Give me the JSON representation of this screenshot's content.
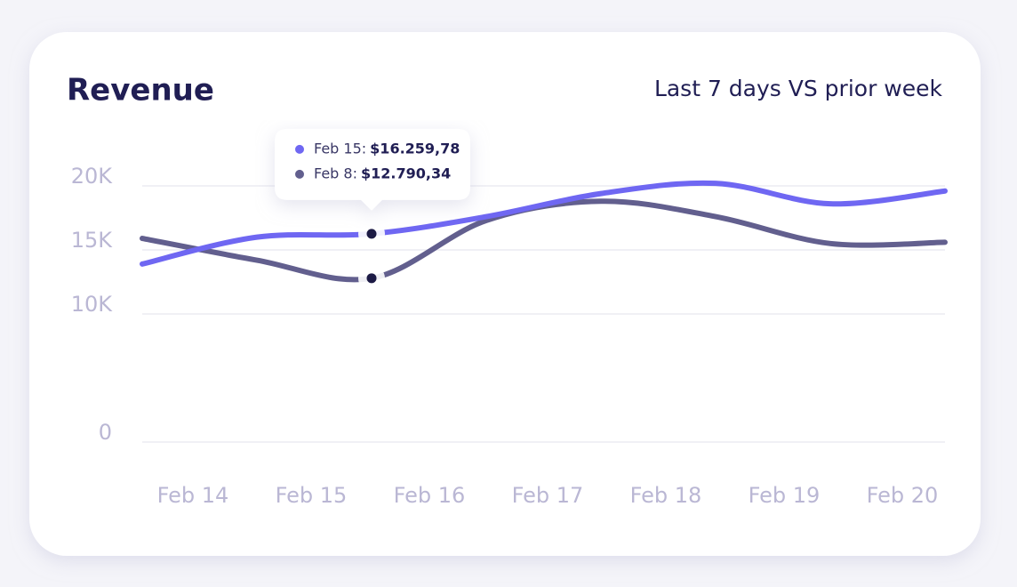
{
  "chart_data": {
    "type": "line",
    "title": "Revenue",
    "subtitle": "Last 7 days VS prior week",
    "x_labels": [
      "Feb 14",
      "Feb 15",
      "Feb 16",
      "Feb 17",
      "Feb 18",
      "Feb 19",
      "Feb 20"
    ],
    "series": [
      {
        "name": "Feb 15:",
        "color": "#6f67f2",
        "values": [
          13900,
          16000,
          16259.78,
          17600,
          19400,
          20200,
          18600,
          19600
        ],
        "value_labels": [
          null,
          null,
          "$16.259,78",
          null,
          null,
          null,
          null,
          null
        ]
      },
      {
        "name": "Feb 8:",
        "color": "#625f8e",
        "values": [
          15900,
          14200,
          12790.34,
          17300,
          18800,
          17600,
          15500,
          15600
        ],
        "value_labels": [
          null,
          null,
          "$12.790,34",
          null,
          null,
          null,
          null,
          null
        ]
      }
    ],
    "ylim": [
      0,
      20000
    ],
    "yticks": [
      0,
      {
        "value": 10000,
        "label": "10K"
      },
      {
        "value": 15000,
        "label": "15K"
      },
      {
        "value": 20000,
        "label": "20K"
      }
    ],
    "grid": true,
    "tooltip_index": 2
  }
}
